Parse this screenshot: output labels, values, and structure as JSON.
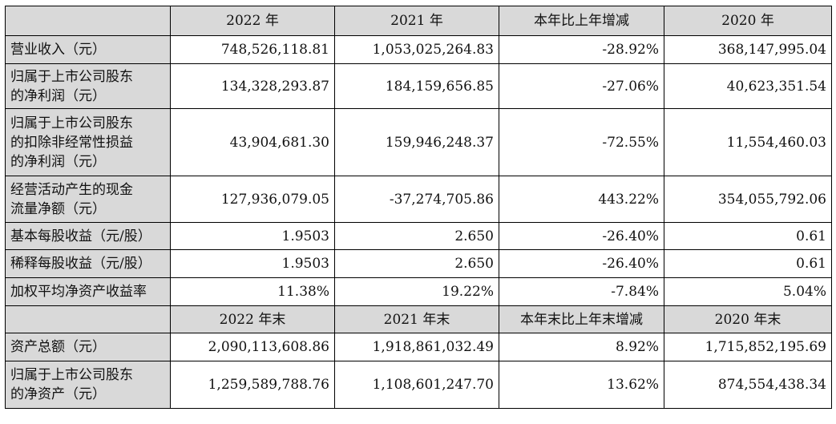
{
  "header1": [
    "2022 年",
    "2021 年",
    "本年比上年增减",
    "2020 年"
  ],
  "rows1": [
    {
      "label": [
        "营业收入（元）"
      ],
      "values": [
        "748,526,118.81",
        "1,053,025,264.83",
        "-28.92%",
        "368,147,995.04"
      ]
    },
    {
      "label": [
        "归属于上市公司股东",
        "的净利润（元）"
      ],
      "values": [
        "134,328,293.87",
        "184,159,656.85",
        "-27.06%",
        "40,623,351.54"
      ]
    },
    {
      "label": [
        "归属于上市公司股东",
        "的扣除非经常性损益",
        "的净利润（元）"
      ],
      "values": [
        "43,904,681.30",
        "159,946,248.37",
        "-72.55%",
        "11,554,460.03"
      ]
    },
    {
      "label": [
        "经营活动产生的现金",
        "流量净额（元）"
      ],
      "values": [
        "127,936,079.05",
        "-37,274,705.86",
        "443.22%",
        "354,055,792.06"
      ]
    },
    {
      "label": [
        "基本每股收益（元/股）"
      ],
      "values": [
        "1.9503",
        "2.650",
        "-26.40%",
        "0.61"
      ]
    },
    {
      "label": [
        "稀释每股收益（元/股）"
      ],
      "values": [
        "1.9503",
        "2.650",
        "-26.40%",
        "0.61"
      ]
    },
    {
      "label": [
        "加权平均净资产收益率"
      ],
      "values": [
        "11.38%",
        "19.22%",
        "-7.84%",
        "5.04%"
      ]
    }
  ],
  "header2": [
    "2022 年末",
    "2021 年末",
    "本年末比上年末增减",
    "2020 年末"
  ],
  "rows2": [
    {
      "label": [
        "资产总额（元）"
      ],
      "values": [
        "2,090,113,608.86",
        "1,918,861,032.49",
        "8.92%",
        "1,715,852,195.69"
      ]
    },
    {
      "label": [
        "归属于上市公司股东",
        "的净资产（元）"
      ],
      "values": [
        "1,259,589,788.76",
        "1,108,601,247.70",
        "13.62%",
        "874,554,438.34"
      ]
    }
  ]
}
